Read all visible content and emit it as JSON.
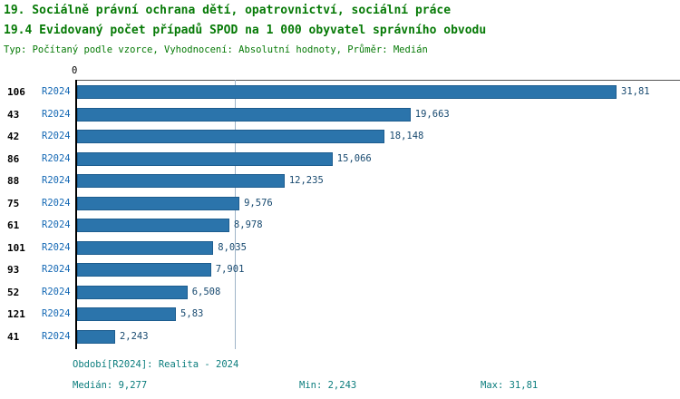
{
  "title": "19. Sociálně právní ochrana dětí, opatrovnictví, sociální práce",
  "subtitle": "19.4 Evidovaný počet případů SPOD na 1 000 obyvatel správního obvodu",
  "meta": "Typ: Počítaný podle vzorce, Vyhodnocení: Absolutní hodnoty, Průměr: Medián",
  "axis": {
    "zero_label": "0"
  },
  "chart_data": {
    "type": "bar",
    "orientation": "horizontal",
    "series_label": "R2024",
    "categories": [
      "106",
      "43",
      "42",
      "86",
      "88",
      "75",
      "61",
      "101",
      "93",
      "52",
      "121",
      "41"
    ],
    "values": [
      31.81,
      19.663,
      18.148,
      15.066,
      12.235,
      9.576,
      8.978,
      8.035,
      7.901,
      6.508,
      5.83,
      2.243
    ],
    "value_labels": [
      "31,81",
      "19,663",
      "18,148",
      "15,066",
      "12,235",
      "9,576",
      "8,978",
      "8,035",
      "7,901",
      "6,508",
      "5,83",
      "2,243"
    ],
    "xlim": [
      0,
      35.5
    ],
    "median": 9.277,
    "min": 2.243,
    "max": 31.81,
    "bar_color": "#2b74ab",
    "median_line": true,
    "legend_position": "none",
    "grid": false
  },
  "footer": {
    "period": "Období[R2024]: Realita - 2024",
    "median": "Medián: 9,277",
    "min": "Min: 2,243",
    "max": "Max: 31,81"
  }
}
